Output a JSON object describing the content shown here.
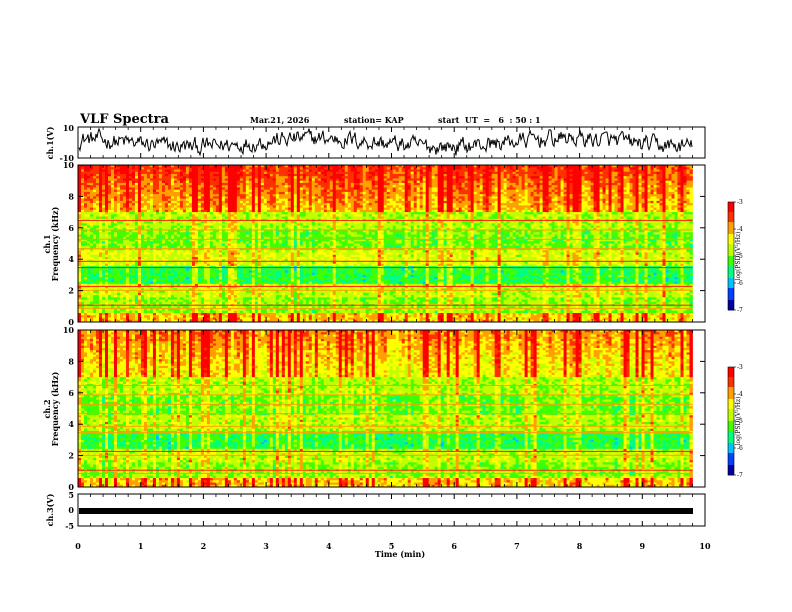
{
  "header": {
    "title": "VLF Spectra",
    "date": "Mar.21, 2026",
    "station": "station= KAP",
    "start_ut": "start  UT  =   6  : 50 : 1"
  },
  "chart_data": [
    {
      "type": "line",
      "name": "ch1-waveform",
      "ylabel": "ch.1(V)",
      "ylim": [
        -10,
        10
      ],
      "yticks": [
        "10",
        "-10"
      ],
      "xlim": [
        0,
        9.8
      ],
      "description_values": "noisy waveform oscillating roughly between -8 and 8 V"
    },
    {
      "type": "heatmap",
      "name": "ch1-spectrogram",
      "ylabel": "ch.1",
      "ylabel2": "Frequency (kHz)",
      "ylim": [
        0,
        10
      ],
      "yticks": [
        "0",
        "2",
        "4",
        "6",
        "8",
        "10"
      ],
      "colorbar": {
        "label": "log(PSD)(V²/Hz)",
        "ticks": [
          "-3",
          "-4",
          "-5",
          "-6",
          "-7"
        ],
        "range": [
          -7,
          -3
        ]
      }
    },
    {
      "type": "heatmap",
      "name": "ch2-spectrogram",
      "ylabel": "ch.2",
      "ylabel2": "Frequency (kHz)",
      "ylim": [
        0,
        10
      ],
      "yticks": [
        "0",
        "2",
        "4",
        "6",
        "8",
        "10"
      ],
      "colorbar": {
        "label": "log(PSD)(V²/Hz)",
        "ticks": [
          "-3",
          "-4",
          "-5",
          "-6",
          "-7"
        ],
        "range": [
          -7,
          -3
        ]
      }
    },
    {
      "type": "line",
      "name": "ch3-waveform",
      "ylabel": "ch.3(V)",
      "ylim": [
        -5,
        5
      ],
      "yticks": [
        "5",
        "0",
        "-5"
      ],
      "values_constant": -1
    }
  ],
  "xaxis": {
    "label": "Time (min)",
    "ticks": [
      "0",
      "1",
      "2",
      "3",
      "4",
      "5",
      "6",
      "7",
      "8",
      "9",
      "10"
    ],
    "range": [
      0,
      10
    ],
    "data_end": 9.8
  },
  "colors": {
    "palette": [
      "#0000a0",
      "#0040ff",
      "#00c0ff",
      "#00ff80",
      "#40ff00",
      "#c0ff00",
      "#ffff00",
      "#ffa000",
      "#ff3000",
      "#ff0000",
      "#ffffff"
    ]
  }
}
